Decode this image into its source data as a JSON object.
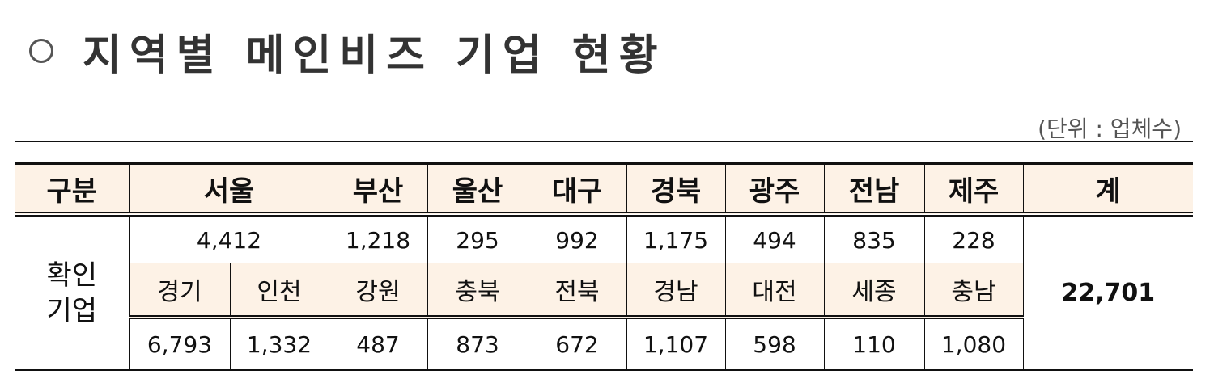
{
  "title": "지역별 메인비즈 기업 현황",
  "unit_label": "(단위 : 업체수)",
  "header": [
    "구분",
    "서울",
    "부산",
    "울산",
    "대구",
    "경북",
    "광주",
    "전남",
    "제주",
    "계"
  ],
  "row_label": "확인 기업",
  "row1_values": [
    "4,412",
    "1,218",
    "295",
    "992",
    "1,175",
    "494",
    "835",
    "228"
  ],
  "sub_header": [
    "경기",
    "인천",
    "강원",
    "충북",
    "전북",
    "경남",
    "대전",
    "세종",
    "충남"
  ],
  "row3_values": [
    "6,793",
    "1,332",
    "487",
    "873",
    "672",
    "1,107",
    "598",
    "110",
    "1,080"
  ],
  "total": "22,701"
}
